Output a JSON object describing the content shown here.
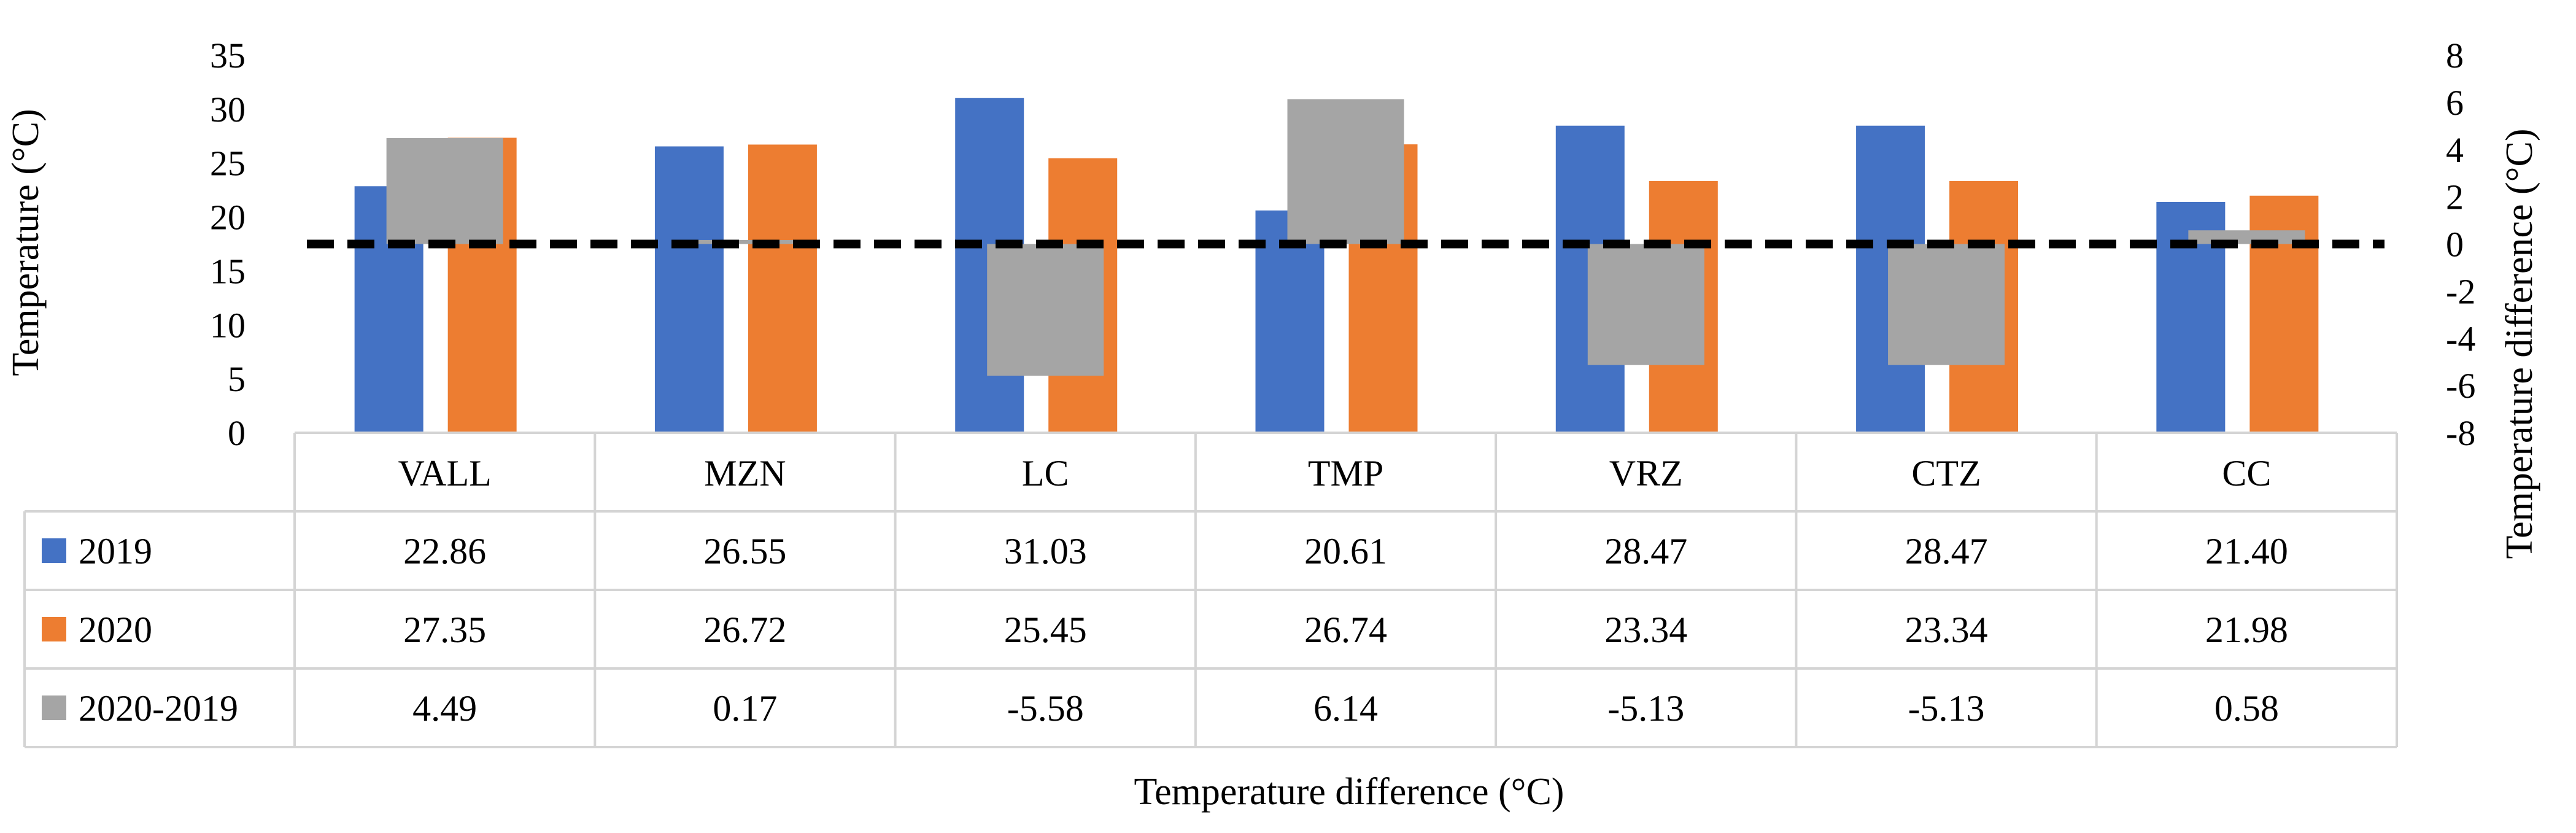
{
  "chart_data": {
    "type": "bar",
    "categories": [
      "VALL",
      "MZN",
      "LC",
      "TMP",
      "VRZ",
      "CTZ",
      "CC"
    ],
    "series": [
      {
        "name": "2019",
        "axis": "left",
        "color": "#4472c4",
        "values": [
          22.86,
          26.55,
          31.03,
          20.61,
          28.47,
          28.47,
          21.4
        ]
      },
      {
        "name": "2020",
        "axis": "left",
        "color": "#ed7d31",
        "values": [
          27.35,
          26.72,
          25.45,
          26.74,
          23.34,
          23.34,
          21.98
        ]
      },
      {
        "name": "2020-2019",
        "axis": "right",
        "color": "#a5a5a5",
        "values": [
          4.49,
          0.17,
          -5.58,
          6.14,
          -5.13,
          -5.13,
          0.58
        ]
      }
    ],
    "table_values": [
      [
        "22.86",
        "26.55",
        "31.03",
        "20.61",
        "28.47",
        "28.47",
        "21.40"
      ],
      [
        "27.35",
        "26.72",
        "25.45",
        "26.74",
        "23.34",
        "23.34",
        "21.98"
      ],
      [
        "4.49",
        "0.17",
        "-5.58",
        "6.14",
        "-5.13",
        "-5.13",
        "0.58"
      ]
    ],
    "ylabel": "Temperature (°C)",
    "y2label": "Temperature difference (°C)",
    "xlabel": "Temperature difference (°C)",
    "ylim": [
      0,
      35
    ],
    "yticks": [
      "0",
      "5",
      "10",
      "15",
      "20",
      "25",
      "30",
      "35"
    ],
    "y2lim": [
      -8,
      8
    ],
    "y2ticks": [
      "-8",
      "-6",
      "-4",
      "-2",
      "0",
      "2",
      "4",
      "6",
      "8"
    ],
    "reference_line": {
      "axis": "right",
      "value": 0,
      "style": "dashed",
      "color": "#000000"
    },
    "data_table": true,
    "grid": false
  }
}
